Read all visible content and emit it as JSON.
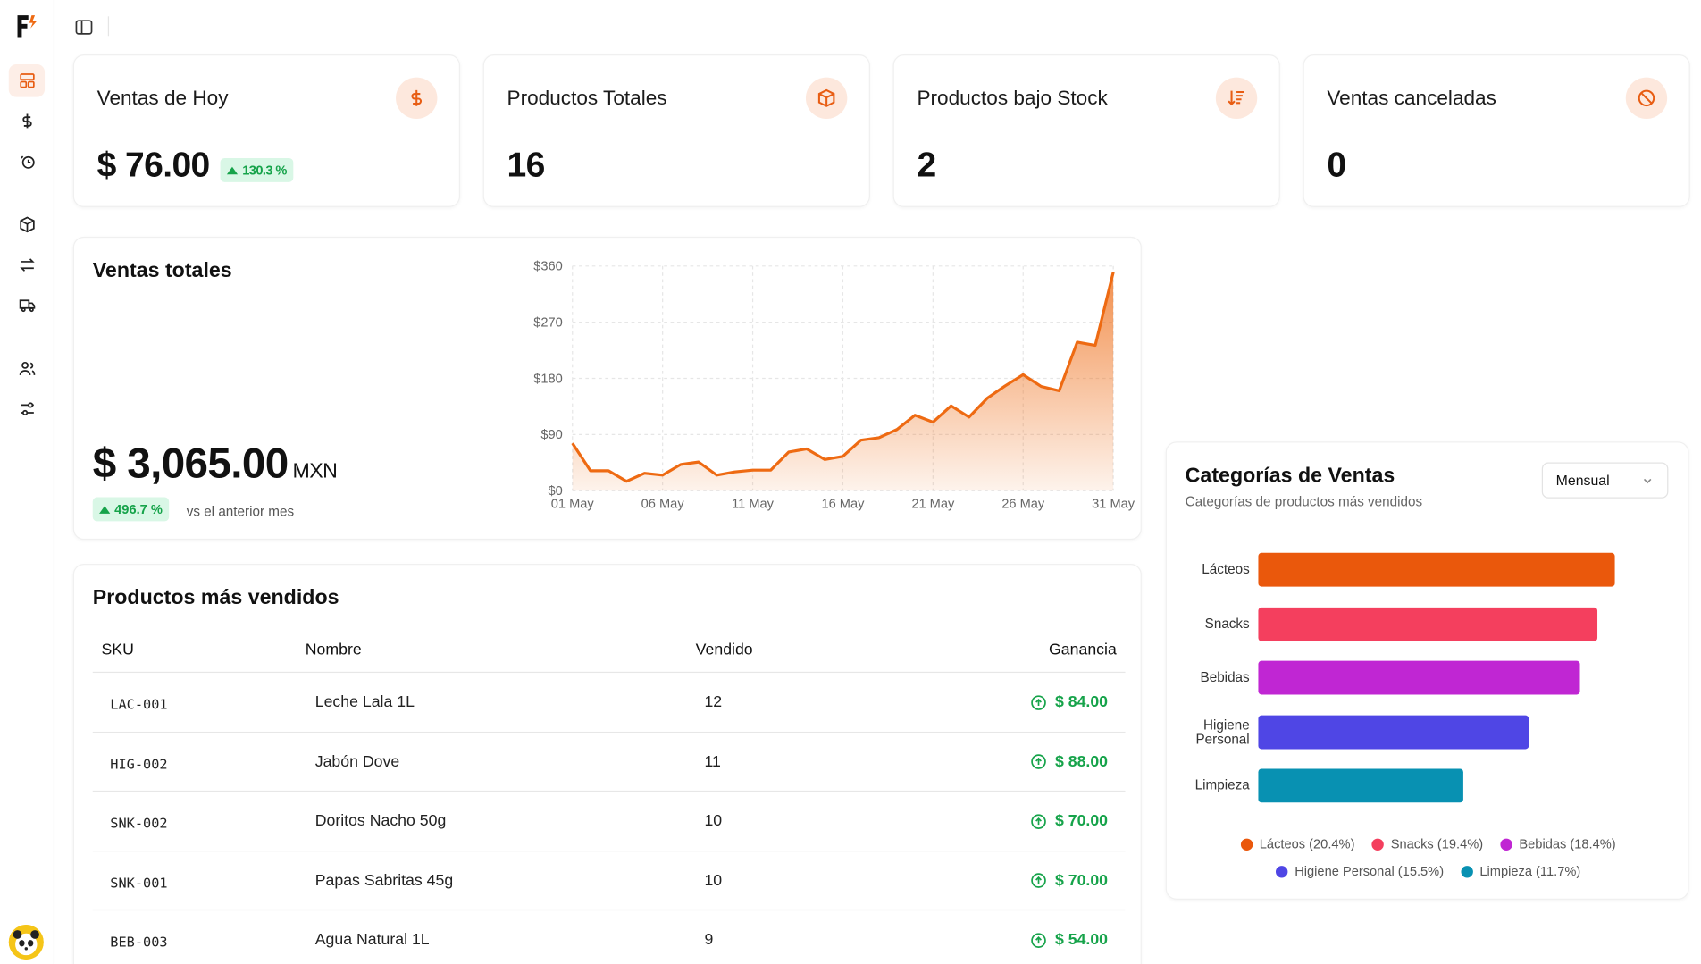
{
  "stats": [
    {
      "title": "Ventas de Hoy",
      "value": "$ 76.00",
      "badge": "130.3 %",
      "icon": "dollar-icon"
    },
    {
      "title": "Productos Totales",
      "value": "16",
      "icon": "box-icon"
    },
    {
      "title": "Productos bajo Stock",
      "value": "2",
      "icon": "sort-down-icon"
    },
    {
      "title": "Ventas canceladas",
      "value": "0",
      "icon": "ban-icon"
    }
  ],
  "total_sales": {
    "title": "Ventas totales",
    "value": "$ 3,065.00",
    "currency": "MXN",
    "badge": "496.7 %",
    "note": "vs el anterior mes"
  },
  "chart_data": [
    {
      "type": "area",
      "title": "",
      "xlabel": "",
      "ylabel": "",
      "ylim": [
        0,
        360
      ],
      "y_ticks": [
        "$0",
        "$90",
        "$180",
        "$270",
        "$360"
      ],
      "x_ticks": [
        "01 May",
        "06 May",
        "11 May",
        "16 May",
        "21 May",
        "26 May",
        "31 May"
      ],
      "color": "#ee6a12",
      "x": [
        1,
        2,
        3,
        4,
        5,
        6,
        7,
        8,
        9,
        10,
        11,
        12,
        13,
        14,
        15,
        16,
        17,
        18,
        19,
        20,
        21,
        22,
        23,
        24,
        25,
        26,
        27,
        28,
        29,
        30,
        31
      ],
      "values": [
        76,
        32,
        32,
        15,
        28,
        25,
        42,
        46,
        25,
        30,
        33,
        33,
        62,
        67,
        50,
        55,
        81,
        85,
        98,
        121,
        110,
        136,
        118,
        148,
        168,
        186,
        167,
        160,
        238,
        233,
        350
      ]
    },
    {
      "type": "bar",
      "orientation": "horizontal",
      "title": "",
      "categories": [
        "Lácteos",
        "Snacks",
        "Bebidas",
        "Higiene Personal",
        "Limpieza"
      ],
      "values": [
        20.4,
        19.4,
        18.4,
        15.5,
        11.7
      ],
      "colors": [
        "#ea580c",
        "#f43f5e",
        "#c026d3",
        "#4f46e5",
        "#0891b2"
      ],
      "legend": [
        "Lácteos (20.4%)",
        "Snacks (19.4%)",
        "Bebidas (18.4%)",
        "Higiene Personal (15.5%)",
        "Limpieza (11.7%)"
      ]
    }
  ],
  "top_products": {
    "title": "Productos más vendidos",
    "columns": [
      "SKU",
      "Nombre",
      "Vendido",
      "Ganancia"
    ],
    "rows": [
      {
        "sku": "LAC-001",
        "name": "Leche Lala 1L",
        "sold": "12",
        "gain": "$ 84.00"
      },
      {
        "sku": "HIG-002",
        "name": "Jabón Dove",
        "sold": "11",
        "gain": "$ 88.00"
      },
      {
        "sku": "SNK-002",
        "name": "Doritos Nacho 50g",
        "sold": "10",
        "gain": "$ 70.00"
      },
      {
        "sku": "SNK-001",
        "name": "Papas Sabritas 45g",
        "sold": "10",
        "gain": "$ 70.00"
      },
      {
        "sku": "BEB-003",
        "name": "Agua Natural 1L",
        "sold": "9",
        "gain": "$ 54.00"
      }
    ]
  },
  "categories": {
    "title": "Categorías de Ventas",
    "subtitle": "Categorías de productos más vendidos",
    "period": "Mensual",
    "bar_labels": [
      [
        "Lácteos"
      ],
      [
        "Snacks"
      ],
      [
        "Bebidas"
      ],
      [
        "Higiene",
        "Personal"
      ],
      [
        "Limpieza"
      ]
    ]
  },
  "colors": {
    "accent": "#e85d13",
    "positive": "#16a34a"
  }
}
